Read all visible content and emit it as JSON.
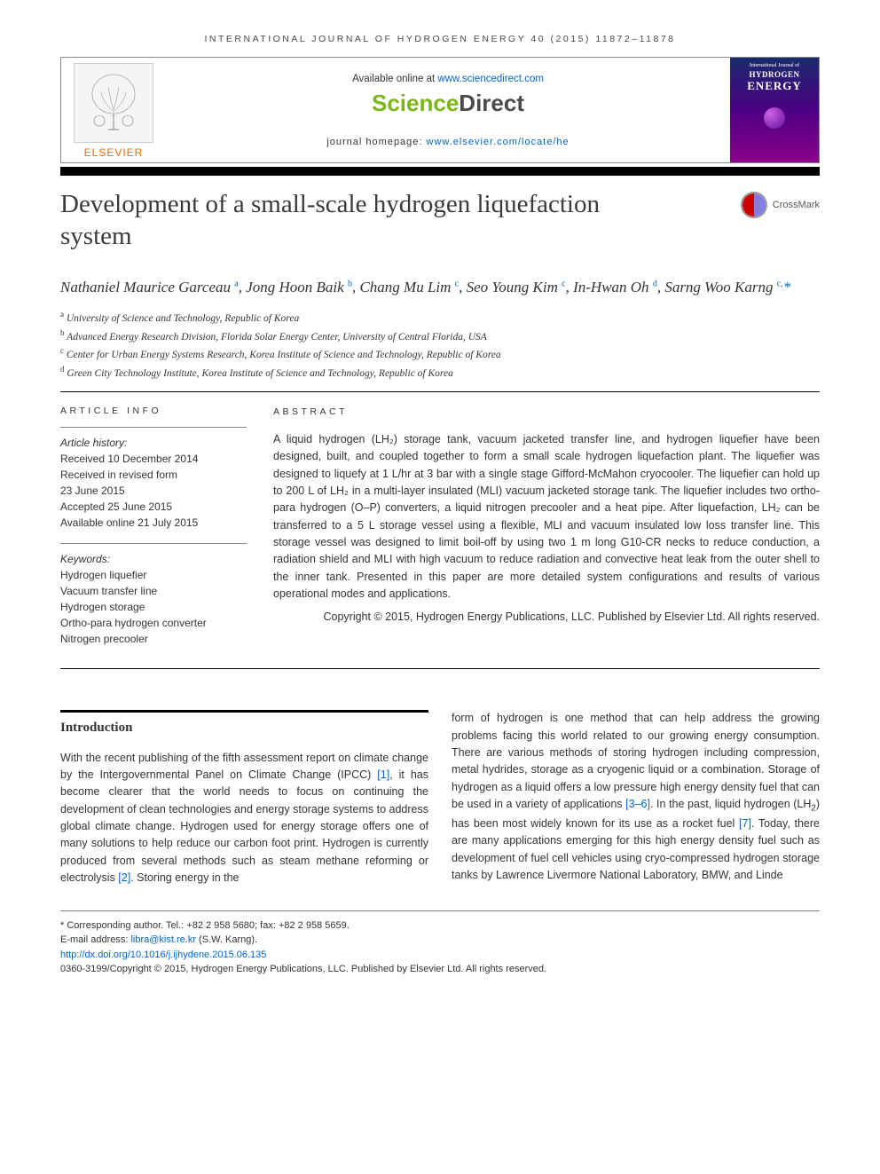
{
  "journal_header": "INTERNATIONAL JOURNAL OF HYDROGEN ENERGY 40 (2015) 11872–11878",
  "banner": {
    "available_prefix": "Available online at ",
    "available_link": "www.sciencedirect.com",
    "sciencedirect_science": "Science",
    "sciencedirect_direct": "Direct",
    "homepage_prefix": "journal homepage: ",
    "homepage_link": "www.elsevier.com/locate/he",
    "elsevier_label": "ELSEVIER",
    "cover_journal": "International Journal of",
    "cover_hydrogen": "HYDROGEN",
    "cover_energy": "ENERGY"
  },
  "crossmark_label": "CrossMark",
  "title": "Development of a small-scale hydrogen liquefaction system",
  "authors_html": "Nathaniel Maurice Garceau <sup>a</sup>, Jong Hoon Baik <sup>b</sup>, Chang Mu Lim <sup>c</sup>, Seo Young Kim <sup>c</sup>, In-Hwan Oh <sup>d</sup>, Sarng Woo Karng <sup>c,</sup><span class='corr'>*</span>",
  "affiliations": [
    {
      "sup": "a",
      "text": "University of Science and Technology, Republic of Korea"
    },
    {
      "sup": "b",
      "text": "Advanced Energy Research Division, Florida Solar Energy Center, University of Central Florida, USA"
    },
    {
      "sup": "c",
      "text": "Center for Urban Energy Systems Research, Korea Institute of Science and Technology, Republic of Korea"
    },
    {
      "sup": "d",
      "text": "Green City Technology Institute, Korea Institute of Science and Technology, Republic of Korea"
    }
  ],
  "article_info": {
    "heading": "ARTICLE INFO",
    "history_label": "Article history:",
    "history_lines": [
      "Received 10 December 2014",
      "Received in revised form",
      "23 June 2015",
      "Accepted 25 June 2015",
      "Available online 21 July 2015"
    ],
    "keywords_label": "Keywords:",
    "keywords": [
      "Hydrogen liquefier",
      "Vacuum transfer line",
      "Hydrogen storage",
      "Ortho-para hydrogen converter",
      "Nitrogen precooler"
    ]
  },
  "abstract": {
    "heading": "ABSTRACT",
    "text": "A liquid hydrogen (LH₂) storage tank, vacuum jacketed transfer line, and hydrogen liquefier have been designed, built, and coupled together to form a small scale hydrogen liquefaction plant. The liquefier was designed to liquefy at 1 L/hr at 3 bar with a single stage Gifford-McMahon cryocooler. The liquefier can hold up to 200 L of LH₂ in a multi-layer insulated (MLI) vacuum jacketed storage tank. The liquefier includes two ortho-para hydrogen (O–P) converters, a liquid nitrogen precooler and a heat pipe. After liquefaction, LH₂ can be transferred to a 5 L storage vessel using a flexible, MLI and vacuum insulated low loss transfer line. This storage vessel was designed to limit boil-off by using two 1 m long G10-CR necks to reduce conduction, a radiation shield and MLI with high vacuum to reduce radiation and convective heat leak from the outer shell to the inner tank. Presented in this paper are more detailed system configurations and results of various operational modes and applications.",
    "copyright": "Copyright © 2015, Hydrogen Energy Publications, LLC. Published by Elsevier Ltd. All rights reserved."
  },
  "body": {
    "introduction_heading": "Introduction",
    "col1": "With the recent publishing of the fifth assessment report on climate change by the Intergovernmental Panel on Climate Change (IPCC) [1], it has become clearer that the world needs to focus on continuing the development of clean technologies and energy storage systems to address global climate change. Hydrogen used for energy storage offers one of many solutions to help reduce our carbon foot print. Hydrogen is currently produced from several methods such as steam methane reforming or electrolysis [2]. Storing energy in the",
    "col1_refs": {
      "1": "[1]",
      "2": "[2]"
    },
    "col2": "form of hydrogen is one method that can help address the growing problems facing this world related to our growing energy consumption. There are various methods of storing hydrogen including compression, metal hydrides, storage as a cryogenic liquid or a combination. Storage of hydrogen as a liquid offers a low pressure high energy density fuel that can be used in a variety of applications [3–6]. In the past, liquid hydrogen (LH₂) has been most widely known for its use as a rocket fuel [7]. Today, there are many applications emerging for this high energy density fuel such as development of fuel cell vehicles using cryo-compressed hydrogen storage tanks by Lawrence Livermore National Laboratory, BMW, and Linde",
    "col2_refs": {
      "36": "[3–6]",
      "7": "[7]"
    }
  },
  "footer": {
    "corr_line": "* Corresponding author. Tel.: +82 2 958 5680; fax: +82 2 958 5659.",
    "email_label": "E-mail address: ",
    "email": "libra@kist.re.kr",
    "email_suffix": " (S.W. Karng).",
    "doi": "http://dx.doi.org/10.1016/j.ijhydene.2015.06.135",
    "issn_copyright": "0360-3199/Copyright © 2015, Hydrogen Energy Publications, LLC. Published by Elsevier Ltd. All rights reserved."
  },
  "colors": {
    "link": "#0066cc",
    "elsevier_orange": "#ed6c00",
    "sd_green": "#7cb518",
    "sd_grey": "#4a4a4a"
  }
}
